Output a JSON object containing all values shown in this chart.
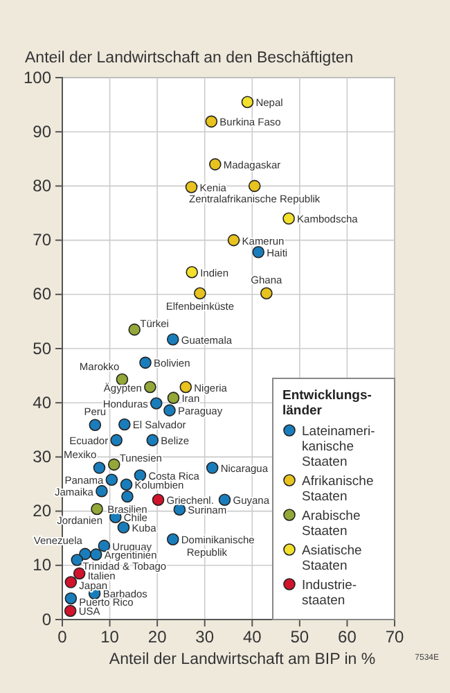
{
  "chart_data": {
    "type": "scatter",
    "title": "Anteil der Landwirtschaft an den Beschäftigten",
    "xlabel": "Anteil der Landwirtschaft am BIP in %",
    "legend_title": "Entwicklungs-länder",
    "xlim": [
      0,
      70
    ],
    "xticks": [
      0,
      10,
      20,
      30,
      40,
      50,
      60,
      70
    ],
    "ylim": [
      0,
      100
    ],
    "yticks": [
      0,
      10,
      20,
      30,
      40,
      50,
      60,
      70,
      80,
      90,
      100
    ],
    "grid": true,
    "legend": "bottom right",
    "marker": "circle",
    "series": [
      {
        "name": "Lateinameri-kanische Staaten",
        "color": "#1a7dbb",
        "x": [
          41.3,
          23.3,
          17.5,
          19.8,
          22.6,
          6.9,
          13.1,
          11.4,
          19,
          7.8,
          31.6,
          16.4,
          10.4,
          13.5,
          8.3,
          13.7,
          34.2,
          24.7,
          11.2,
          12.9,
          23.3,
          8.8,
          7.1,
          4.8,
          3.1,
          6.8,
          1.8
        ],
        "values": [
          67.8,
          51.7,
          47.4,
          39.9,
          38.6,
          35.9,
          36,
          33.1,
          33.1,
          28,
          28,
          26.6,
          25.8,
          24.9,
          23.7,
          22.7,
          22.1,
          20.3,
          18.9,
          17,
          14.8,
          13.6,
          12,
          12.1,
          11,
          4.8,
          3.9
        ]
      },
      {
        "name": "Afrikanische Staaten",
        "color": "#e8c21e",
        "x": [
          31.4,
          32.2,
          27.2,
          40.5,
          36.1,
          29,
          43,
          26
        ],
        "values": [
          91.9,
          84,
          79.8,
          80,
          70,
          60.2,
          60.2,
          42.9
        ]
      },
      {
        "name": "Arabische Staaten",
        "color": "#93a838",
        "x": [
          15.2,
          12.6,
          18.5,
          23.4,
          10.9,
          7.3
        ],
        "values": [
          53.5,
          44.3,
          42.9,
          40.9,
          28.6,
          20.4
        ]
      },
      {
        "name": "Asiatische Staaten",
        "color": "#f3e02c",
        "x": [
          39,
          47.7,
          27.3
        ],
        "values": [
          95.5,
          74,
          64.1
        ]
      },
      {
        "name": "Industrie-staaten",
        "color": "#d0142c",
        "x": [
          20.2,
          3.6,
          1.8,
          1.7
        ],
        "values": [
          22.1,
          8.5,
          6.9,
          1.6
        ]
      }
    ],
    "annotations": [
      {
        "text": "Haiti",
        "x": 41.3,
        "y": 67.8
      },
      {
        "text": "Guatemala",
        "x": 23.3,
        "y": 51.7
      },
      {
        "text": "Bolivien",
        "x": 17.5,
        "y": 47.4
      },
      {
        "text": "Honduras",
        "x": 19.8,
        "y": 39.9
      },
      {
        "text": "Paraguay",
        "x": 22.6,
        "y": 38.6
      },
      {
        "text": "Peru",
        "x": 6.9,
        "y": 35.9
      },
      {
        "text": "El Salvador",
        "x": 13.1,
        "y": 36
      },
      {
        "text": "Ecuador",
        "x": 11.4,
        "y": 33.1
      },
      {
        "text": "Belize",
        "x": 19,
        "y": 33.1
      },
      {
        "text": "Mexiko",
        "x": 7.8,
        "y": 28
      },
      {
        "text": "Nicaragua",
        "x": 31.6,
        "y": 28
      },
      {
        "text": "Costa Rica",
        "x": 16.4,
        "y": 26.6
      },
      {
        "text": "Panama",
        "x": 10.4,
        "y": 25.8
      },
      {
        "text": "Kolumbien",
        "x": 13.5,
        "y": 24.9
      },
      {
        "text": "Jamaika",
        "x": 8.3,
        "y": 23.7
      },
      {
        "text": "Brasilien",
        "x": 13.7,
        "y": 22.7
      },
      {
        "text": "Guyana",
        "x": 34.2,
        "y": 22.1
      },
      {
        "text": "Surinam",
        "x": 24.7,
        "y": 20.3
      },
      {
        "text": "Chile",
        "x": 11.2,
        "y": 18.9
      },
      {
        "text": "Kuba",
        "x": 12.9,
        "y": 17
      },
      {
        "text": "Dominikanische Republik",
        "x": 23.3,
        "y": 14.8
      },
      {
        "text": "Uruguay",
        "x": 8.8,
        "y": 13.6
      },
      {
        "text": "Argentinien",
        "x": 7.1,
        "y": 12
      },
      {
        "text": "Venezuela",
        "x": 4.8,
        "y": 12.1
      },
      {
        "text": "Trinidad & Tobago",
        "x": 3.1,
        "y": 11
      },
      {
        "text": "Barbados",
        "x": 6.8,
        "y": 4.8
      },
      {
        "text": "Puerto Rico",
        "x": 1.8,
        "y": 3.9
      },
      {
        "text": "Burkina Faso",
        "x": 31.4,
        "y": 91.9
      },
      {
        "text": "Madagaskar",
        "x": 32.2,
        "y": 84
      },
      {
        "text": "Kenia",
        "x": 27.2,
        "y": 79.8
      },
      {
        "text": "Zentralafrikanische Republik",
        "x": 40.5,
        "y": 80
      },
      {
        "text": "Kamerun",
        "x": 36.1,
        "y": 70
      },
      {
        "text": "Elfenbeinküste",
        "x": 29,
        "y": 60.2
      },
      {
        "text": "Ghana",
        "x": 43,
        "y": 60.2
      },
      {
        "text": "Nigeria",
        "x": 26,
        "y": 42.9
      },
      {
        "text": "Türkei",
        "x": 15.2,
        "y": 53.5
      },
      {
        "text": "Marokko",
        "x": 12.6,
        "y": 44.3
      },
      {
        "text": "Ägypten",
        "x": 18.5,
        "y": 42.9
      },
      {
        "text": "Iran",
        "x": 23.4,
        "y": 40.9
      },
      {
        "text": "Tunesien",
        "x": 10.9,
        "y": 28.6
      },
      {
        "text": "Jordanien",
        "x": 7.3,
        "y": 20.4
      },
      {
        "text": "Nepal",
        "x": 39,
        "y": 95.5
      },
      {
        "text": "Kambodscha",
        "x": 47.7,
        "y": 74
      },
      {
        "text": "Indien",
        "x": 27.3,
        "y": 64.1
      },
      {
        "text": "Griechenl.",
        "x": 20.2,
        "y": 22.1
      },
      {
        "text": "Italien",
        "x": 3.6,
        "y": 8.5
      },
      {
        "text": "Japan",
        "x": 1.8,
        "y": 6.9
      },
      {
        "text": "USA",
        "x": 1.7,
        "y": 1.6
      },
      "7534E"
    ]
  }
}
